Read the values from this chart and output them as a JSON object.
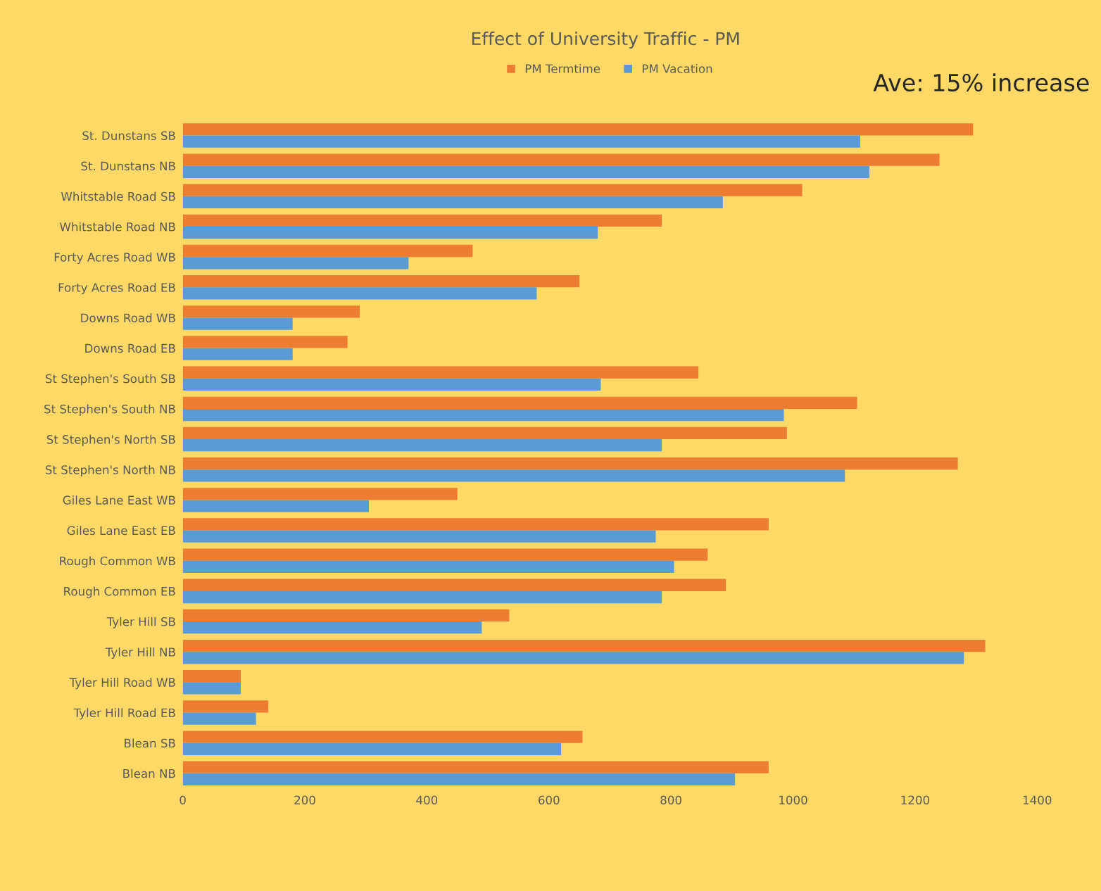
{
  "chart_data": {
    "type": "bar",
    "orientation": "horizontal",
    "title": "Effect of University Traffic - PM",
    "annotations": [
      "Ave: 15% increase"
    ],
    "categories": [
      "St. Dunstans SB",
      "St. Dunstans NB",
      "Whitstable Road SB",
      "Whitstable Road NB",
      "Forty Acres Road WB",
      "Forty Acres Road EB",
      "Downs Road WB",
      "Downs Road EB",
      "St Stephen's South SB",
      "St Stephen's South NB",
      "St Stephen's North SB",
      "St Stephen's North NB",
      "Giles Lane East WB",
      "Giles Lane East EB",
      "Rough Common WB",
      "Rough Common EB",
      "Tyler Hill SB",
      "Tyler Hill NB",
      "Tyler Hill Road WB",
      "Tyler Hill Road EB",
      "Blean SB",
      "Blean NB"
    ],
    "series": [
      {
        "name": "PM Termtime",
        "color": "#ed7d31",
        "values": [
          1295,
          1240,
          1015,
          785,
          475,
          650,
          290,
          270,
          845,
          1105,
          990,
          1270,
          450,
          960,
          860,
          890,
          535,
          1315,
          95,
          140,
          655,
          960
        ]
      },
      {
        "name": "PM Vacation",
        "color": "#5b9bd5",
        "values": [
          1110,
          1125,
          885,
          680,
          370,
          580,
          180,
          180,
          685,
          985,
          785,
          1085,
          305,
          775,
          805,
          785,
          490,
          1280,
          95,
          120,
          620,
          905
        ]
      }
    ],
    "xlim": [
      0,
      1400
    ],
    "xticks": [
      0,
      200,
      400,
      600,
      800,
      1000,
      1200,
      1400
    ],
    "grid": false,
    "legend": "top"
  }
}
